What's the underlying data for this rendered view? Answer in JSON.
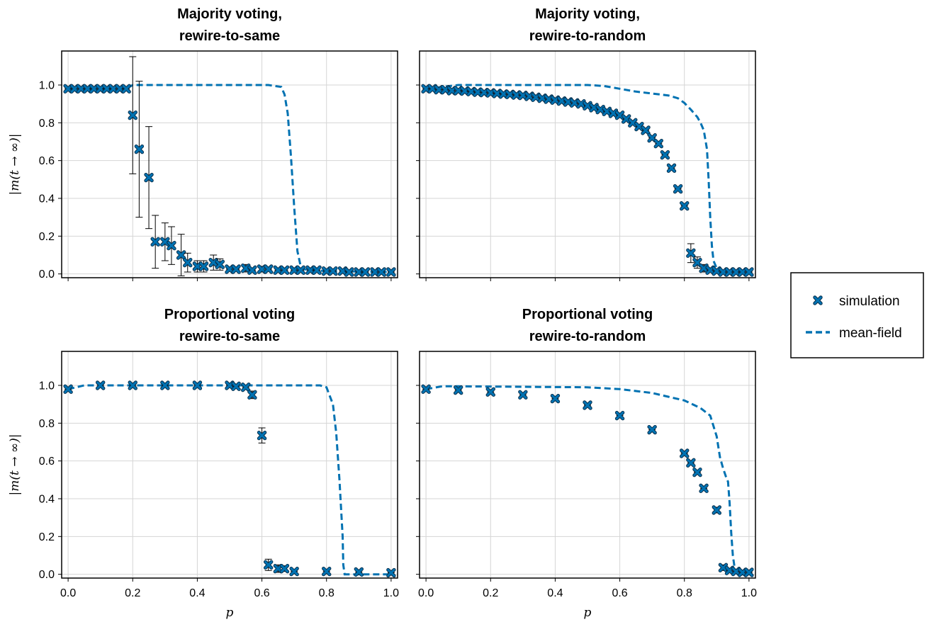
{
  "chart_data": [
    {
      "type": "scatter",
      "title_line1": "Majority voting,",
      "title_line2": "rewire-to-same",
      "xlabel": "",
      "ylabel": "|m(t → ∞)|",
      "xlim": [
        -0.02,
        1.02
      ],
      "ylim": [
        -0.02,
        1.18
      ],
      "grid": true,
      "series": [
        {
          "name": "simulation",
          "style": "marker-x-with-errorbars",
          "points": [
            {
              "x": 0.0,
              "y": 0.98,
              "err": 0.01
            },
            {
              "x": 0.02,
              "y": 0.98,
              "err": 0.01
            },
            {
              "x": 0.04,
              "y": 0.98,
              "err": 0.01
            },
            {
              "x": 0.06,
              "y": 0.98,
              "err": 0.01
            },
            {
              "x": 0.08,
              "y": 0.98,
              "err": 0.01
            },
            {
              "x": 0.1,
              "y": 0.98,
              "err": 0.01
            },
            {
              "x": 0.12,
              "y": 0.98,
              "err": 0.01
            },
            {
              "x": 0.14,
              "y": 0.98,
              "err": 0.01
            },
            {
              "x": 0.16,
              "y": 0.98,
              "err": 0.01
            },
            {
              "x": 0.18,
              "y": 0.98,
              "err": 0.01
            },
            {
              "x": 0.2,
              "y": 0.84,
              "err": 0.31
            },
            {
              "x": 0.22,
              "y": 0.66,
              "err": 0.36
            },
            {
              "x": 0.25,
              "y": 0.51,
              "err": 0.27
            },
            {
              "x": 0.27,
              "y": 0.17,
              "err": 0.14
            },
            {
              "x": 0.3,
              "y": 0.17,
              "err": 0.1
            },
            {
              "x": 0.32,
              "y": 0.15,
              "err": 0.1
            },
            {
              "x": 0.35,
              "y": 0.1,
              "err": 0.11
            },
            {
              "x": 0.37,
              "y": 0.06,
              "err": 0.05
            },
            {
              "x": 0.4,
              "y": 0.04,
              "err": 0.03
            },
            {
              "x": 0.42,
              "y": 0.04,
              "err": 0.03
            },
            {
              "x": 0.45,
              "y": 0.06,
              "err": 0.04
            },
            {
              "x": 0.47,
              "y": 0.05,
              "err": 0.03
            },
            {
              "x": 0.5,
              "y": 0.025,
              "err": 0.01
            },
            {
              "x": 0.52,
              "y": 0.025,
              "err": 0.01
            },
            {
              "x": 0.55,
              "y": 0.03,
              "err": 0.02
            },
            {
              "x": 0.57,
              "y": 0.02,
              "err": 0.01
            },
            {
              "x": 0.6,
              "y": 0.025,
              "err": 0.015
            },
            {
              "x": 0.62,
              "y": 0.025,
              "err": 0.01
            },
            {
              "x": 0.65,
              "y": 0.02,
              "err": 0.01
            },
            {
              "x": 0.67,
              "y": 0.02,
              "err": 0.01
            },
            {
              "x": 0.7,
              "y": 0.02,
              "err": 0.01
            },
            {
              "x": 0.72,
              "y": 0.02,
              "err": 0.01
            },
            {
              "x": 0.75,
              "y": 0.02,
              "err": 0.01
            },
            {
              "x": 0.77,
              "y": 0.02,
              "err": 0.01
            },
            {
              "x": 0.8,
              "y": 0.015,
              "err": 0.01
            },
            {
              "x": 0.82,
              "y": 0.015,
              "err": 0.01
            },
            {
              "x": 0.85,
              "y": 0.015,
              "err": 0.01
            },
            {
              "x": 0.87,
              "y": 0.01,
              "err": 0.01
            },
            {
              "x": 0.9,
              "y": 0.01,
              "err": 0.01
            },
            {
              "x": 0.92,
              "y": 0.01,
              "err": 0.01
            },
            {
              "x": 0.95,
              "y": 0.01,
              "err": 0.01
            },
            {
              "x": 0.97,
              "y": 0.01,
              "err": 0.01
            },
            {
              "x": 1.0,
              "y": 0.01,
              "err": 0.01
            }
          ]
        },
        {
          "name": "mean-field",
          "style": "dashed-line",
          "x": [
            0.0,
            0.18,
            0.2,
            0.62,
            0.66,
            0.67,
            0.68,
            0.69,
            0.7,
            0.71,
            0.72,
            0.73,
            0.76,
            0.8,
            1.0
          ],
          "y": [
            0.98,
            0.98,
            1.0,
            1.0,
            0.99,
            0.95,
            0.85,
            0.62,
            0.35,
            0.12,
            0.04,
            0.025,
            0.02,
            0.015,
            0.01
          ]
        }
      ]
    },
    {
      "type": "scatter",
      "title_line1": "Majority voting,",
      "title_line2": "rewire-to-random",
      "xlabel": "",
      "ylabel": "",
      "xlim": [
        -0.02,
        1.02
      ],
      "ylim": [
        -0.02,
        1.18
      ],
      "grid": true,
      "series": [
        {
          "name": "simulation",
          "style": "marker-x-with-errorbars",
          "points": [
            {
              "x": 0.0,
              "y": 0.98,
              "err": 0.005
            },
            {
              "x": 0.02,
              "y": 0.98,
              "err": 0.005
            },
            {
              "x": 0.04,
              "y": 0.975,
              "err": 0.005
            },
            {
              "x": 0.06,
              "y": 0.975,
              "err": 0.005
            },
            {
              "x": 0.08,
              "y": 0.97,
              "err": 0.005
            },
            {
              "x": 0.1,
              "y": 0.97,
              "err": 0.005
            },
            {
              "x": 0.12,
              "y": 0.968,
              "err": 0.005
            },
            {
              "x": 0.14,
              "y": 0.965,
              "err": 0.005
            },
            {
              "x": 0.16,
              "y": 0.962,
              "err": 0.005
            },
            {
              "x": 0.18,
              "y": 0.96,
              "err": 0.005
            },
            {
              "x": 0.2,
              "y": 0.958,
              "err": 0.005
            },
            {
              "x": 0.22,
              "y": 0.955,
              "err": 0.005
            },
            {
              "x": 0.24,
              "y": 0.952,
              "err": 0.005
            },
            {
              "x": 0.26,
              "y": 0.95,
              "err": 0.005
            },
            {
              "x": 0.28,
              "y": 0.947,
              "err": 0.005
            },
            {
              "x": 0.3,
              "y": 0.945,
              "err": 0.005
            },
            {
              "x": 0.32,
              "y": 0.94,
              "err": 0.005
            },
            {
              "x": 0.34,
              "y": 0.935,
              "err": 0.005
            },
            {
              "x": 0.36,
              "y": 0.93,
              "err": 0.005
            },
            {
              "x": 0.38,
              "y": 0.925,
              "err": 0.005
            },
            {
              "x": 0.4,
              "y": 0.92,
              "err": 0.005
            },
            {
              "x": 0.42,
              "y": 0.915,
              "err": 0.005
            },
            {
              "x": 0.44,
              "y": 0.91,
              "err": 0.005
            },
            {
              "x": 0.46,
              "y": 0.905,
              "err": 0.005
            },
            {
              "x": 0.48,
              "y": 0.9,
              "err": 0.005
            },
            {
              "x": 0.5,
              "y": 0.89,
              "err": 0.005
            },
            {
              "x": 0.52,
              "y": 0.88,
              "err": 0.005
            },
            {
              "x": 0.54,
              "y": 0.87,
              "err": 0.005
            },
            {
              "x": 0.56,
              "y": 0.86,
              "err": 0.005
            },
            {
              "x": 0.58,
              "y": 0.85,
              "err": 0.005
            },
            {
              "x": 0.6,
              "y": 0.84,
              "err": 0.005
            },
            {
              "x": 0.62,
              "y": 0.82,
              "err": 0.005
            },
            {
              "x": 0.64,
              "y": 0.8,
              "err": 0.005
            },
            {
              "x": 0.66,
              "y": 0.78,
              "err": 0.005
            },
            {
              "x": 0.68,
              "y": 0.76,
              "err": 0.005
            },
            {
              "x": 0.7,
              "y": 0.72,
              "err": 0.005
            },
            {
              "x": 0.72,
              "y": 0.69,
              "err": 0.005
            },
            {
              "x": 0.74,
              "y": 0.63,
              "err": 0.01
            },
            {
              "x": 0.76,
              "y": 0.56,
              "err": 0.01
            },
            {
              "x": 0.78,
              "y": 0.45,
              "err": 0.01
            },
            {
              "x": 0.8,
              "y": 0.36,
              "err": 0.01
            },
            {
              "x": 0.82,
              "y": 0.11,
              "err": 0.05
            },
            {
              "x": 0.84,
              "y": 0.06,
              "err": 0.03
            },
            {
              "x": 0.86,
              "y": 0.03,
              "err": 0.02
            },
            {
              "x": 0.88,
              "y": 0.02,
              "err": 0.01
            },
            {
              "x": 0.9,
              "y": 0.015,
              "err": 0.01
            },
            {
              "x": 0.92,
              "y": 0.01,
              "err": 0.01
            },
            {
              "x": 0.94,
              "y": 0.01,
              "err": 0.01
            },
            {
              "x": 0.96,
              "y": 0.01,
              "err": 0.01
            },
            {
              "x": 0.98,
              "y": 0.01,
              "err": 0.01
            },
            {
              "x": 1.0,
              "y": 0.01,
              "err": 0.01
            }
          ]
        },
        {
          "name": "mean-field",
          "style": "dashed-line",
          "x": [
            0.0,
            0.05,
            0.1,
            0.4,
            0.5,
            0.55,
            0.6,
            0.65,
            0.7,
            0.75,
            0.78,
            0.8,
            0.82,
            0.84,
            0.85,
            0.86,
            0.87,
            0.875,
            0.88,
            0.885,
            0.89,
            0.9,
            0.92,
            1.0
          ],
          "y": [
            0.98,
            0.99,
            1.0,
            1.0,
            1.0,
            0.995,
            0.98,
            0.965,
            0.955,
            0.945,
            0.93,
            0.905,
            0.87,
            0.83,
            0.8,
            0.76,
            0.66,
            0.5,
            0.3,
            0.15,
            0.07,
            0.03,
            0.015,
            0.01
          ]
        }
      ]
    },
    {
      "type": "scatter",
      "title_line1": "Proportional voting",
      "title_line2": "rewire-to-same",
      "xlabel": "p",
      "ylabel": "|m(t → ∞)|",
      "xlim": [
        -0.02,
        1.02
      ],
      "ylim": [
        -0.02,
        1.18
      ],
      "grid": true,
      "series": [
        {
          "name": "simulation",
          "style": "marker-x-with-errorbars",
          "points": [
            {
              "x": 0.0,
              "y": 0.98,
              "err": 0.005
            },
            {
              "x": 0.1,
              "y": 1.0,
              "err": 0.005
            },
            {
              "x": 0.2,
              "y": 1.0,
              "err": 0.005
            },
            {
              "x": 0.3,
              "y": 1.0,
              "err": 0.005
            },
            {
              "x": 0.4,
              "y": 1.0,
              "err": 0.005
            },
            {
              "x": 0.5,
              "y": 1.0,
              "err": 0.005
            },
            {
              "x": 0.52,
              "y": 0.995,
              "err": 0.005
            },
            {
              "x": 0.55,
              "y": 0.99,
              "err": 0.01
            },
            {
              "x": 0.57,
              "y": 0.95,
              "err": 0.02
            },
            {
              "x": 0.6,
              "y": 0.735,
              "err": 0.04
            },
            {
              "x": 0.62,
              "y": 0.05,
              "err": 0.03
            },
            {
              "x": 0.65,
              "y": 0.03,
              "err": 0.02
            },
            {
              "x": 0.67,
              "y": 0.03,
              "err": 0.015
            },
            {
              "x": 0.7,
              "y": 0.015,
              "err": 0.01
            },
            {
              "x": 0.8,
              "y": 0.015,
              "err": 0.01
            },
            {
              "x": 0.9,
              "y": 0.012,
              "err": 0.008
            },
            {
              "x": 1.0,
              "y": 0.008,
              "err": 0.005
            }
          ]
        },
        {
          "name": "mean-field",
          "style": "dashed-line",
          "x": [
            0.0,
            0.05,
            0.1,
            0.78,
            0.8,
            0.82,
            0.83,
            0.84,
            0.85,
            0.852,
            0.856,
            0.86,
            1.0
          ],
          "y": [
            0.98,
            1.0,
            1.0,
            1.0,
            0.99,
            0.9,
            0.75,
            0.5,
            0.2,
            0.05,
            0.0,
            0.0,
            0.0
          ]
        }
      ]
    },
    {
      "type": "scatter",
      "title_line1": "Proportional voting",
      "title_line2": "rewire-to-random",
      "xlabel": "p",
      "ylabel": "",
      "xlim": [
        -0.02,
        1.02
      ],
      "ylim": [
        -0.02,
        1.18
      ],
      "grid": true,
      "series": [
        {
          "name": "simulation",
          "style": "marker-x-with-errorbars",
          "points": [
            {
              "x": 0.0,
              "y": 0.98,
              "err": 0.005
            },
            {
              "x": 0.1,
              "y": 0.975,
              "err": 0.005
            },
            {
              "x": 0.2,
              "y": 0.965,
              "err": 0.005
            },
            {
              "x": 0.3,
              "y": 0.95,
              "err": 0.005
            },
            {
              "x": 0.4,
              "y": 0.93,
              "err": 0.005
            },
            {
              "x": 0.5,
              "y": 0.895,
              "err": 0.005
            },
            {
              "x": 0.6,
              "y": 0.84,
              "err": 0.005
            },
            {
              "x": 0.7,
              "y": 0.765,
              "err": 0.005
            },
            {
              "x": 0.8,
              "y": 0.64,
              "err": 0.005
            },
            {
              "x": 0.82,
              "y": 0.59,
              "err": 0.005
            },
            {
              "x": 0.84,
              "y": 0.54,
              "err": 0.005
            },
            {
              "x": 0.86,
              "y": 0.455,
              "err": 0.01
            },
            {
              "x": 0.9,
              "y": 0.34,
              "err": 0.015
            },
            {
              "x": 0.92,
              "y": 0.035,
              "err": 0.015
            },
            {
              "x": 0.94,
              "y": 0.02,
              "err": 0.01
            },
            {
              "x": 0.96,
              "y": 0.015,
              "err": 0.01
            },
            {
              "x": 0.98,
              "y": 0.01,
              "err": 0.01
            },
            {
              "x": 1.0,
              "y": 0.01,
              "err": 0.01
            }
          ]
        },
        {
          "name": "mean-field",
          "style": "dashed-line",
          "x": [
            0.0,
            0.05,
            0.1,
            0.5,
            0.6,
            0.7,
            0.75,
            0.8,
            0.85,
            0.88,
            0.9,
            0.91,
            0.92,
            0.93,
            0.935,
            0.94,
            0.945,
            0.95,
            0.955,
            0.96,
            0.965,
            1.0
          ],
          "y": [
            0.98,
            0.995,
            0.995,
            0.99,
            0.98,
            0.96,
            0.94,
            0.92,
            0.88,
            0.84,
            0.73,
            0.62,
            0.56,
            0.51,
            0.49,
            0.38,
            0.22,
            0.1,
            0.04,
            0.01,
            0.0,
            0.0
          ]
        }
      ]
    }
  ],
  "ticks": {
    "x": [
      0.0,
      0.2,
      0.4,
      0.6,
      0.8,
      1.0
    ],
    "x_labels": [
      "0.0",
      "0.2",
      "0.4",
      "0.6",
      "0.8",
      "1.0"
    ],
    "y": [
      0.0,
      0.2,
      0.4,
      0.6,
      0.8,
      1.0
    ],
    "y_labels": [
      "0.0",
      "0.2",
      "0.4",
      "0.6",
      "0.8",
      "1.0"
    ]
  },
  "legend": {
    "placement": "right",
    "entries": [
      {
        "label": "simulation",
        "kind": "marker"
      },
      {
        "label": "mean-field",
        "kind": "dashed"
      }
    ]
  },
  "colors": {
    "series": "#0072B2",
    "marker_edge": "#0a2f4a",
    "errorbar": "#000000",
    "grid": "#d5d5d5",
    "frame": "#000000"
  }
}
